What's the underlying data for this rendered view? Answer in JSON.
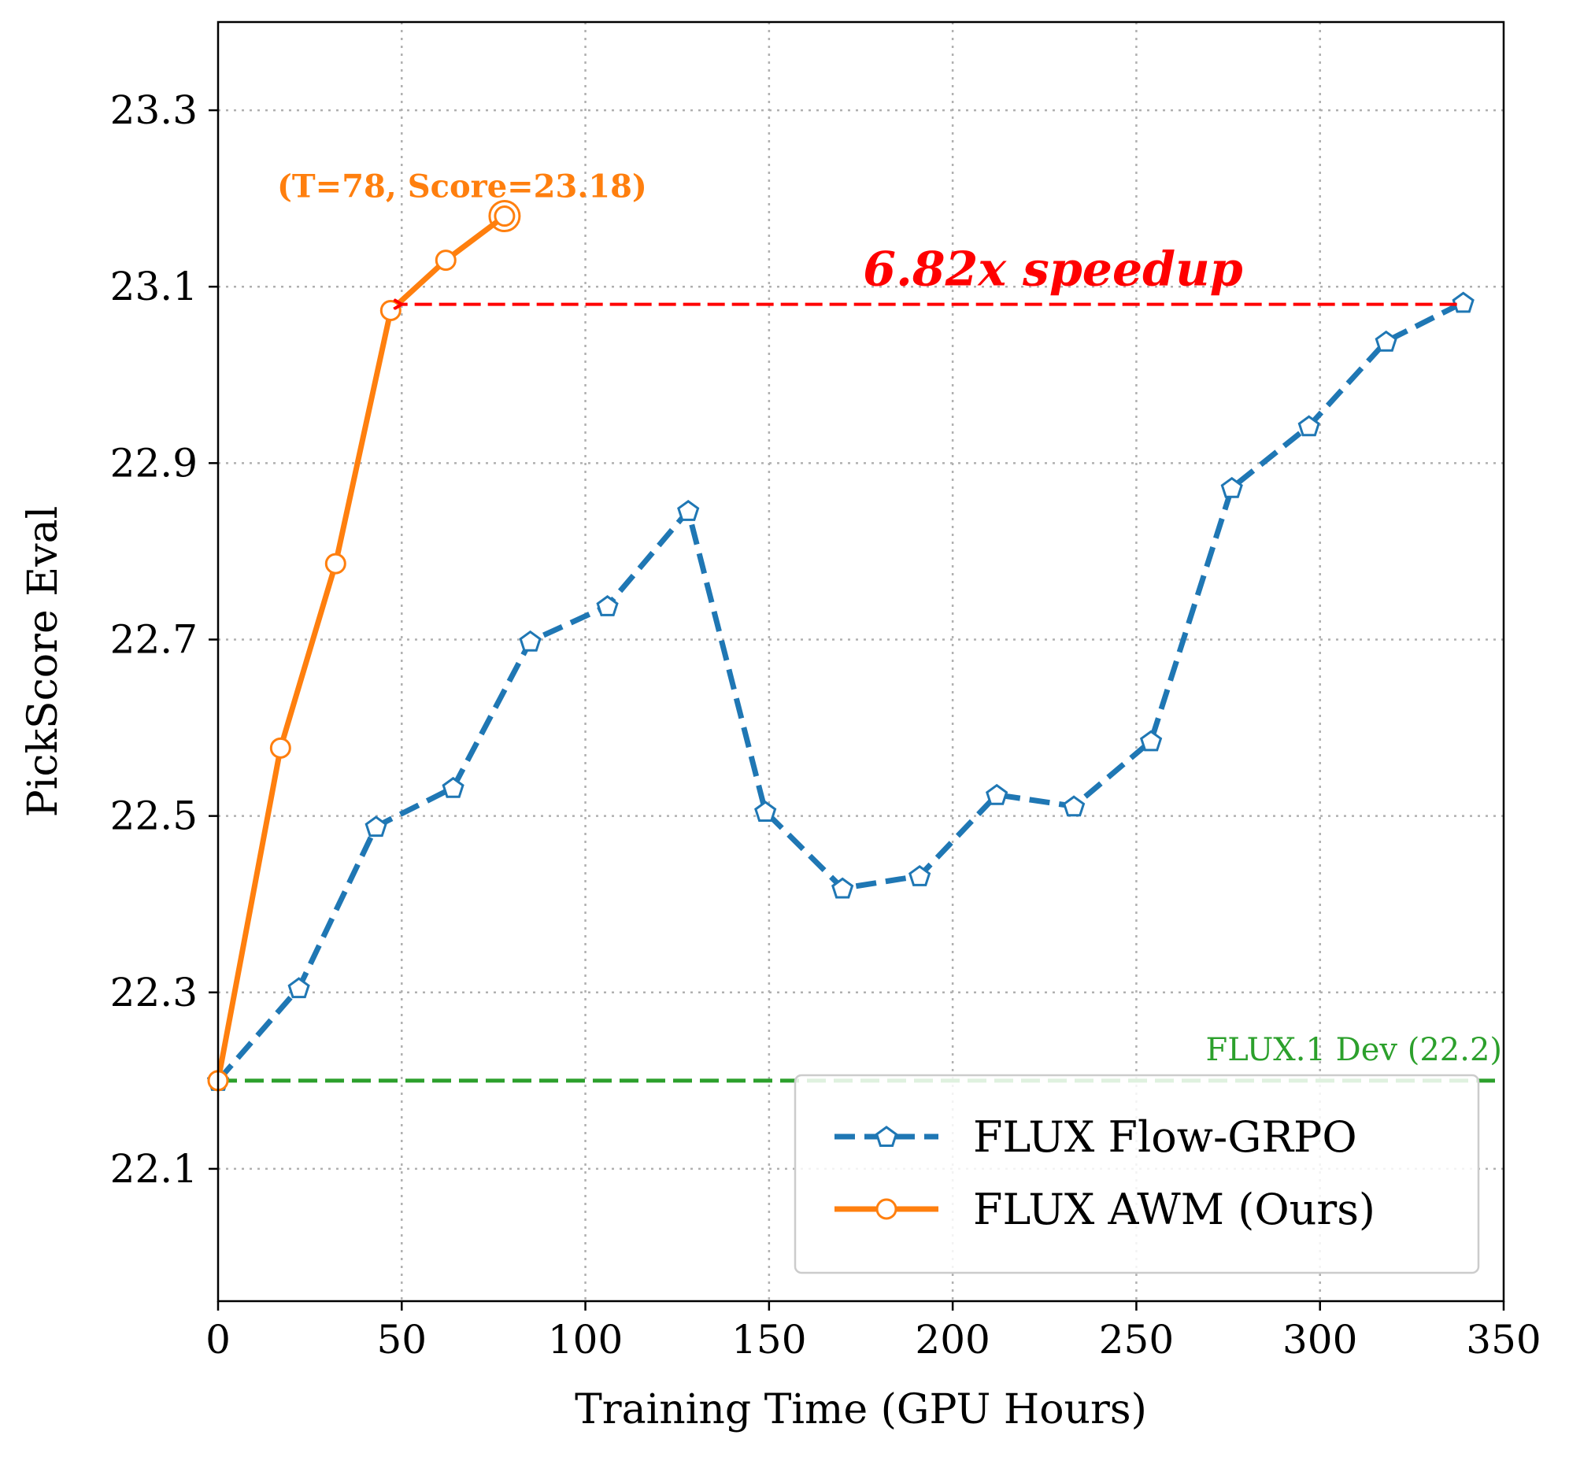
{
  "chart_data": {
    "type": "line",
    "xlabel": "Training Time (GPU Hours)",
    "ylabel": "PickScore Eval",
    "xlim": [
      0,
      350
    ],
    "ylim": [
      21.95,
      23.4
    ],
    "xticks": [
      0,
      50,
      100,
      150,
      200,
      250,
      300,
      350
    ],
    "yticks": [
      22.1,
      22.3,
      22.5,
      22.7,
      22.9,
      23.1,
      23.3
    ],
    "xtick_labels": [
      "0",
      "50",
      "100",
      "150",
      "200",
      "250",
      "300",
      "350"
    ],
    "ytick_labels": [
      "22.1",
      "22.3",
      "22.5",
      "22.7",
      "22.9",
      "23.1",
      "23.3"
    ],
    "grid": true,
    "legend_position": "lower-right",
    "series": [
      {
        "name": "FLUX Flow-GRPO",
        "color": "#1f77b4",
        "line_style": "dashed",
        "marker": "pentagon",
        "x": [
          0,
          22,
          43,
          64,
          85,
          106,
          128,
          149,
          170,
          191,
          212,
          233,
          254,
          276,
          297,
          318,
          339
        ],
        "y": [
          22.2,
          22.305,
          22.488,
          22.532,
          22.698,
          22.738,
          22.846,
          22.505,
          22.418,
          22.432,
          22.524,
          22.511,
          22.585,
          22.872,
          22.942,
          23.038,
          23.082
        ]
      },
      {
        "name": "FLUX AWM (Ours)",
        "color": "#ff7f0e",
        "line_style": "solid",
        "marker": "circle",
        "x": [
          0,
          17,
          32,
          47,
          62,
          78
        ],
        "y": [
          22.2,
          22.577,
          22.786,
          23.073,
          23.13,
          23.18
        ]
      }
    ],
    "reference_line": {
      "label": "FLUX.1 Dev (22.2)",
      "value": 22.2,
      "color": "#2ca02c"
    },
    "annotations": [
      {
        "text": "(T=78, Score=23.18)",
        "x": 78,
        "y": 23.18,
        "color": "#ff7f0e"
      },
      {
        "text": "6.82x speedup",
        "from_x": 339,
        "to_x": 47,
        "y": 23.08,
        "color": "#ff0000"
      }
    ]
  }
}
